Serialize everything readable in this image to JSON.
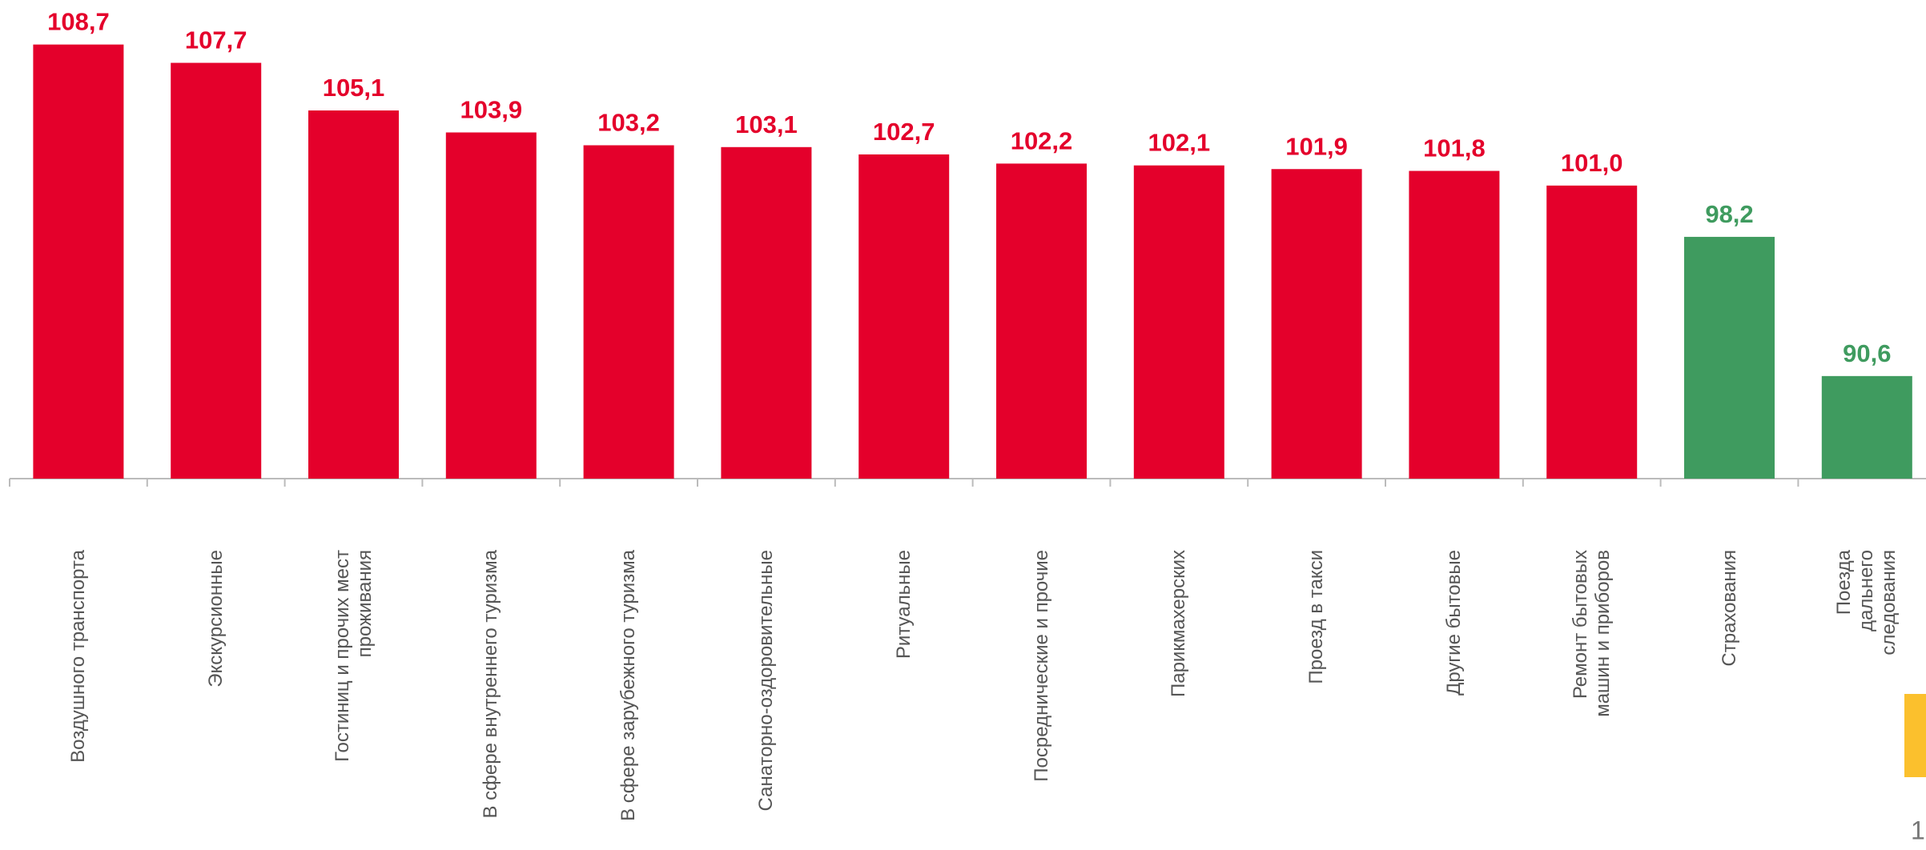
{
  "chart_data": {
    "type": "bar",
    "categories": [
      "Воздушного транспорта",
      "Экскурсионные",
      "Гостиниц и прочих мест\nпроживания",
      "В сфере внутреннего туризма",
      "В сфере зарубежного туризма",
      "Санаторно-оздоровительные",
      "Ритуальные",
      "Посреднические и прочие",
      "Парикмахерских",
      "Проезд в такси",
      "Другие бытовые",
      "Ремонт бытовых\nмашин и приборов",
      "Страхования",
      "Поезда дальнего следования"
    ],
    "values": [
      108.7,
      107.7,
      105.1,
      103.9,
      103.2,
      103.1,
      102.7,
      102.2,
      102.1,
      101.9,
      101.8,
      101.0,
      98.2,
      90.6
    ],
    "value_labels": [
      "108,7",
      "107,7",
      "105,1",
      "103,9",
      "103,2",
      "103,1",
      "102,7",
      "102,2",
      "102,1",
      "101,9",
      "101,8",
      "101,0",
      "98,2",
      "90,6"
    ],
    "colors": [
      "#e4002b",
      "#e4002b",
      "#e4002b",
      "#e4002b",
      "#e4002b",
      "#e4002b",
      "#e4002b",
      "#e4002b",
      "#e4002b",
      "#e4002b",
      "#e4002b",
      "#e4002b",
      "#3f9b5f",
      "#3f9b5f"
    ],
    "ylim": [
      85,
      111
    ]
  },
  "page_number": "1"
}
